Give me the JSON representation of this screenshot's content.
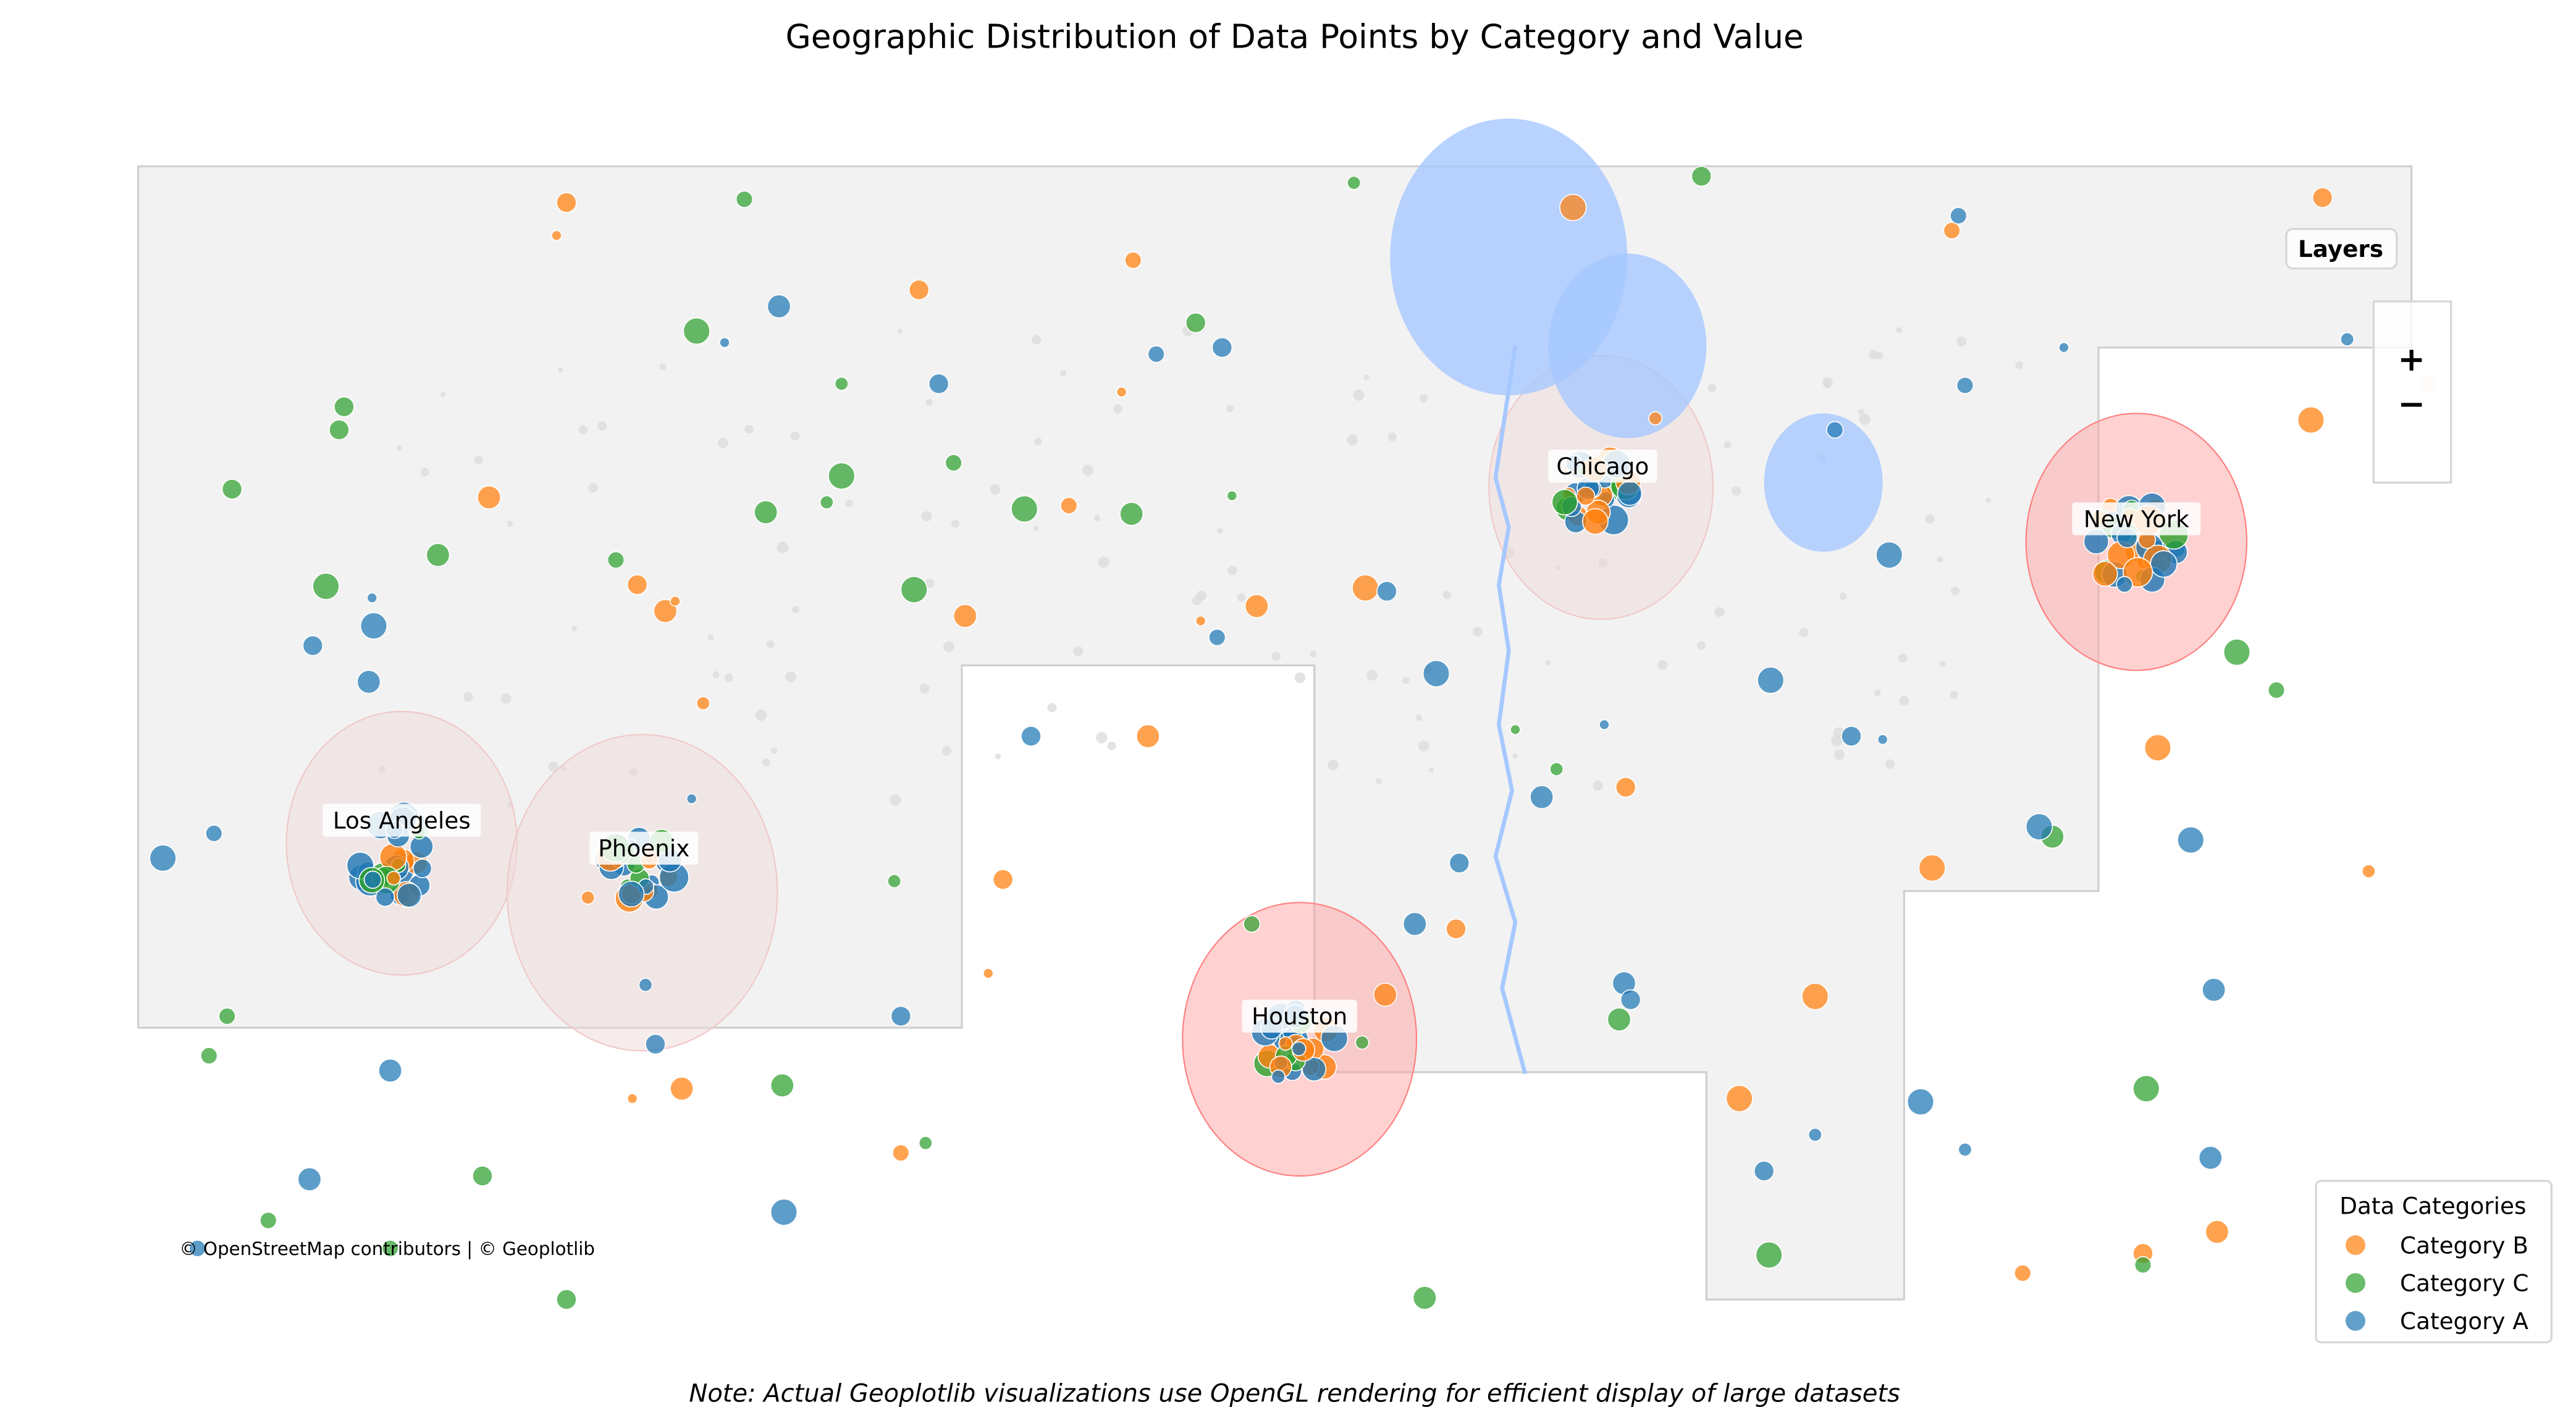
{
  "title": "Geographic Distribution of Data Points by Category and Value",
  "note": "Note: Actual Geoplotlib visualizations use OpenGL rendering for efficient display of large datasets",
  "attribution": "© OpenStreetMap contributors | © Geoplotlib",
  "controls": {
    "layers_label": "Layers",
    "zoom_in": "+",
    "zoom_out": "−"
  },
  "legend": {
    "title": "Data Categories",
    "placement": "bottom-right",
    "entries": [
      {
        "label": "Category B",
        "color": "#ff7f0e"
      },
      {
        "label": "Category C",
        "color": "#2ca02c"
      },
      {
        "label": "Category A",
        "color": "#1f77b4"
      }
    ]
  },
  "colors": {
    "background_region": "#f2f2f2",
    "water": "#a6c8ff",
    "hotspot_strong": "#ff9999",
    "hotspot_faint": "#f0dada",
    "river": "#a6c8ff"
  },
  "cities": [
    {
      "name": "Los Angeles",
      "hotspot": "faint"
    },
    {
      "name": "Phoenix",
      "hotspot": "faint"
    },
    {
      "name": "Chicago",
      "hotspot": "faint"
    },
    {
      "name": "Houston",
      "hotspot": "strong"
    },
    {
      "name": "New York",
      "hotspot": "strong"
    }
  ],
  "chart_data": {
    "type": "scatter",
    "title": "Geographic Distribution of Data Points by Category and Value",
    "series": [
      {
        "name": "Category B"
      },
      {
        "name": "Category C"
      },
      {
        "name": "Category A"
      }
    ],
    "encoding": {
      "color": "category",
      "size": "value"
    },
    "grid": false,
    "legend_placement": "bottom-right"
  }
}
